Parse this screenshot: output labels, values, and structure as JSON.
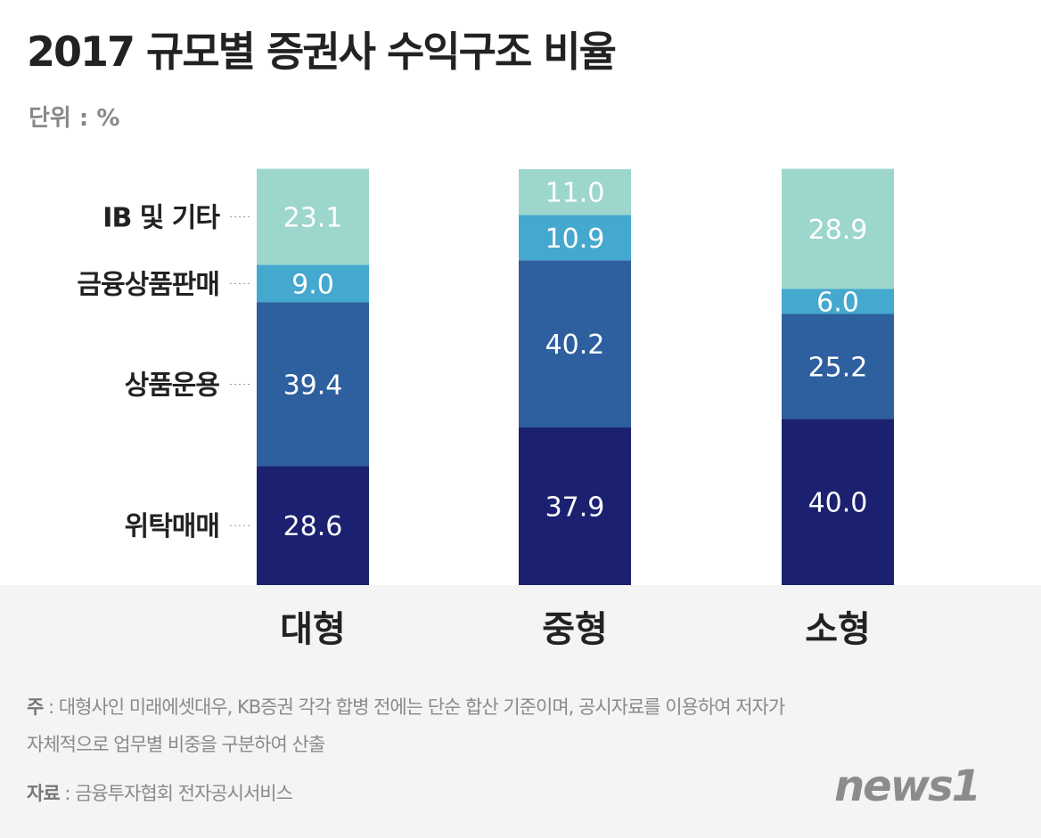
{
  "title": "2017 규모별 증권사 수익구조 비율",
  "unit": "단위 : %",
  "chart_data": {
    "type": "bar",
    "stacked": true,
    "categories": [
      "대형",
      "중형",
      "소형"
    ],
    "series": [
      {
        "name": "위탁매매",
        "values": [
          28.6,
          37.9,
          40.0
        ],
        "color": "#1b2170"
      },
      {
        "name": "상품운용",
        "values": [
          39.4,
          40.2,
          25.2
        ],
        "color": "#2e5f9e"
      },
      {
        "name": "금융상품판매",
        "values": [
          9.0,
          10.9,
          6.0
        ],
        "color": "#45a8cf"
      },
      {
        "name": "IB 및 기타",
        "values": [
          23.1,
          11.0,
          28.9
        ],
        "color": "#9dd6cc"
      }
    ],
    "ylim": [
      0,
      100
    ],
    "grid": false,
    "legend": "left"
  },
  "footer": {
    "note_label": "주",
    "note_line1": " : 대형사인 미래에셋대우, KB증권 각각 합병 전에는 단순 합산 기준이며, 공시자료를 이용하여 저자가",
    "note_line2": "자체적으로 업무별 비중을 구분하여 산출",
    "source_label": "자료",
    "source_text": " : 금융투자협회 전자공시서비스",
    "logo": "news1"
  }
}
